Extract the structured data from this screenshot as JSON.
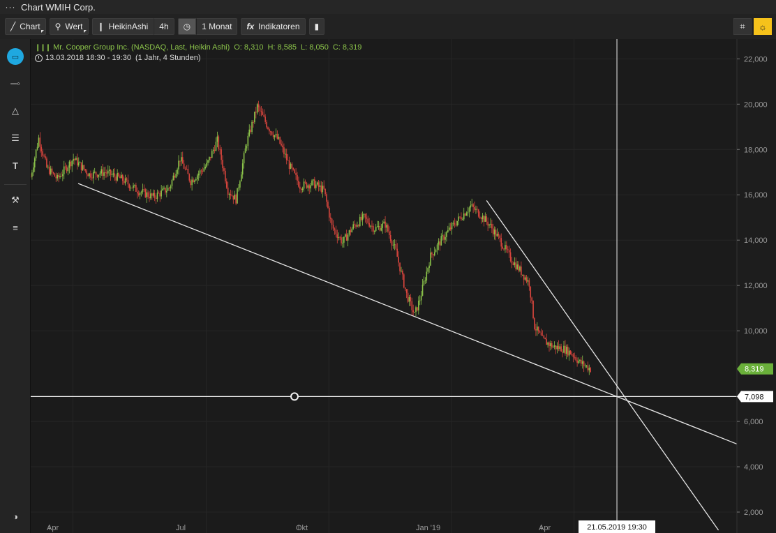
{
  "titlebar": {
    "menu_icon": "ellipsis-icon",
    "title": "Chart WMIH Corp."
  },
  "toolbar": {
    "chart_label": "Chart",
    "wert_label": "Wert",
    "heikin_label": "HeikinAshi",
    "interval_label": "4h",
    "period_label": "1 Monat",
    "indicators_label": "Indikatoren",
    "indicators_icon": "fx"
  },
  "legend": {
    "instrument": "Mr. Cooper Group Inc. (NASDAQ, Last, Heikin Ashi)",
    "o_label": "O:",
    "o_value": "8,310",
    "h_label": "H:",
    "h_value": "8,585",
    "l_label": "L:",
    "l_value": "8,050",
    "c_label": "C:",
    "c_value": "8,319",
    "time_range": "13.03.2018 18:30 - 19:30",
    "period": "(1 Jahr, 4 Stunden)"
  },
  "colors": {
    "up": "#8bc34a",
    "down": "#d9453d",
    "accent": "#1fa8e0",
    "highlight": "#f6c21b",
    "last_price_bg": "#6ab03a"
  },
  "crosshair": {
    "price_label": "7,098",
    "date_label": "21.05.2019 19:30"
  },
  "last_price": "8,319",
  "chart_data": {
    "type": "candlestick",
    "ylim": [
      1200,
      22500
    ],
    "y_ticks": [
      "22,000",
      "20,000",
      "18,000",
      "16,000",
      "14,000",
      "12,000",
      "10,000",
      "6,000",
      "4,000",
      "2,000"
    ],
    "y_tick_values": [
      22000,
      20000,
      18000,
      16000,
      14000,
      12000,
      10000,
      6000,
      4000,
      2000
    ],
    "x_ticks": [
      "Apr",
      "Jul",
      "Okt",
      "Jan '19",
      "Apr"
    ],
    "trend": [
      [
        0,
        16800
      ],
      [
        3,
        18500
      ],
      [
        6,
        17200
      ],
      [
        10,
        16700
      ],
      [
        16,
        17600
      ],
      [
        22,
        16900
      ],
      [
        28,
        17000
      ],
      [
        34,
        16700
      ],
      [
        40,
        16200
      ],
      [
        46,
        15900
      ],
      [
        52,
        16300
      ],
      [
        56,
        17600
      ],
      [
        60,
        16600
      ],
      [
        66,
        17300
      ],
      [
        70,
        18400
      ],
      [
        74,
        16200
      ],
      [
        77,
        15800
      ],
      [
        81,
        18300
      ],
      [
        85,
        19900
      ],
      [
        89,
        19000
      ],
      [
        93,
        18400
      ],
      [
        97,
        17300
      ],
      [
        101,
        16400
      ],
      [
        106,
        16500
      ],
      [
        110,
        16200
      ],
      [
        113,
        14600
      ],
      [
        117,
        13900
      ],
      [
        121,
        14600
      ],
      [
        125,
        15000
      ],
      [
        129,
        14500
      ],
      [
        133,
        14700
      ],
      [
        137,
        13500
      ],
      [
        141,
        11600
      ],
      [
        144,
        10700
      ],
      [
        146,
        11400
      ],
      [
        150,
        13300
      ],
      [
        154,
        14000
      ],
      [
        158,
        14600
      ],
      [
        162,
        15100
      ],
      [
        165,
        15500
      ],
      [
        168,
        15200
      ],
      [
        172,
        14700
      ],
      [
        176,
        14000
      ],
      [
        180,
        13200
      ],
      [
        184,
        12600
      ],
      [
        187,
        12100
      ],
      [
        189,
        10200
      ],
      [
        192,
        9600
      ],
      [
        196,
        9300
      ],
      [
        200,
        9200
      ],
      [
        203,
        9000
      ],
      [
        206,
        8600
      ],
      [
        210,
        8319
      ]
    ],
    "drawings": {
      "support_line": {
        "from": [
          17.8,
          16500
        ],
        "to": [
          265,
          5000
        ]
      },
      "resistance_line": {
        "from": [
          171,
          15750
        ],
        "to": [
          258,
          1200
        ]
      },
      "horizontal_line": {
        "value": 7098
      },
      "crosshair_index": 222
    }
  }
}
